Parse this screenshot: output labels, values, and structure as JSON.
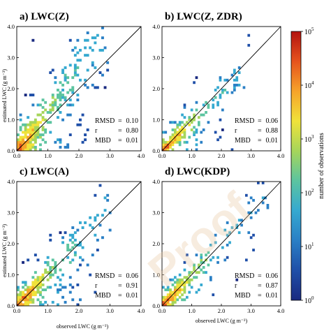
{
  "chart_data": [
    {
      "type": "heatmap",
      "panel": "a) LWC(Z)",
      "title": "a) LWC(Z)",
      "xlabel": "",
      "ylabel": "estimated LWC (g m⁻³)",
      "xlim": [
        0,
        4.0
      ],
      "ylim": [
        0,
        4.0
      ],
      "xticks": [
        "0.0",
        "1.0",
        "2.0",
        "3.0",
        "4.0"
      ],
      "yticks": [
        "0.0",
        "1.0",
        "2.0",
        "3.0",
        "4.0"
      ],
      "one_to_one_line": true,
      "stats": [
        {
          "name": "RMSD",
          "value": "0.10"
        },
        {
          "name": "r",
          "value": "0.80"
        },
        {
          "name": "MBD",
          "value": "0.01"
        }
      ],
      "pattern": {
        "slope": 1.35,
        "spread": 0.55,
        "obs_max": 2.9,
        "seed": 11
      }
    },
    {
      "type": "heatmap",
      "panel": "b) LWC(Z, ZDR)",
      "title": "b) LWC(Z, ZDR)",
      "xlabel": "",
      "ylabel": "",
      "xlim": [
        0,
        4.0
      ],
      "ylim": [
        0,
        4.0
      ],
      "xticks": [
        "0.0",
        "1.0",
        "2.0",
        "3.0",
        "4.0"
      ],
      "yticks": [
        "0.0",
        "1.0",
        "2.0",
        "3.0",
        "4.0"
      ],
      "one_to_one_line": true,
      "stats": [
        {
          "name": "RMSD",
          "value": "0.06"
        },
        {
          "name": "r",
          "value": "0.88"
        },
        {
          "name": "MBD",
          "value": "0.01"
        }
      ],
      "pattern": {
        "slope": 0.95,
        "spread": 0.28,
        "obs_max": 2.9,
        "seed": 23
      }
    },
    {
      "type": "heatmap",
      "panel": "c) LWC(A)",
      "title": "c) LWC(A)",
      "xlabel": "",
      "ylabel": "estimated LWC (g m⁻³)",
      "xlim": [
        0,
        4.0
      ],
      "ylim": [
        0,
        4.0
      ],
      "xticks": [
        "0.0",
        "1.0",
        "2.0",
        "3.0",
        "4.0"
      ],
      "yticks": [
        "0.0",
        "1.0",
        "2.0",
        "3.0",
        "4.0"
      ],
      "one_to_one_line": true,
      "stats": [
        {
          "name": "RMSD",
          "value": "0.06"
        },
        {
          "name": "r",
          "value": "0.91"
        },
        {
          "name": "MBD",
          "value": "0.01"
        }
      ],
      "pattern": {
        "slope": 1.05,
        "spread": 0.38,
        "obs_max": 3.0,
        "seed": 37
      }
    },
    {
      "type": "heatmap",
      "panel": "d) LWC(KDP)",
      "title": "d) LWC(KDP)",
      "xlabel": "observed LWC (g m⁻³)",
      "ylabel": "",
      "xlim": [
        0,
        4.0
      ],
      "ylim": [
        0,
        4.0
      ],
      "xticks": [
        "0.0",
        "1.0",
        "2.0",
        "3.0",
        "4.0"
      ],
      "yticks": [
        "0.0",
        "1.0",
        "2.0",
        "3.0",
        "4.0"
      ],
      "one_to_one_line": true,
      "stats": [
        {
          "name": "RMSD",
          "value": "0.06"
        },
        {
          "name": "r",
          "value": "0.87"
        },
        {
          "name": "MBD",
          "value": "0.01"
        }
      ],
      "pattern": {
        "slope": 1.0,
        "spread": 0.32,
        "obs_max": 3.6,
        "seed": 53
      }
    }
  ],
  "shared": {
    "xlabel_bottom_left": "observed LWC (g m⁻³)",
    "colorbar": {
      "label": "number of observations",
      "scale": "log",
      "range": [
        1,
        100000
      ],
      "ticks": [
        {
          "base": "10",
          "exp": "0"
        },
        {
          "base": "10",
          "exp": "1"
        },
        {
          "base": "10",
          "exp": "2"
        },
        {
          "base": "10",
          "exp": "3"
        },
        {
          "base": "10",
          "exp": "4"
        },
        {
          "base": "10",
          "exp": "5"
        }
      ],
      "colormap": [
        "#1a2a80",
        "#1f4fa8",
        "#2a7fc5",
        "#35a9d0",
        "#5cc4a0",
        "#a6d55a",
        "#f0e23a",
        "#f6a32a",
        "#e6531e",
        "#b3130f"
      ]
    }
  },
  "watermark": "Proof"
}
